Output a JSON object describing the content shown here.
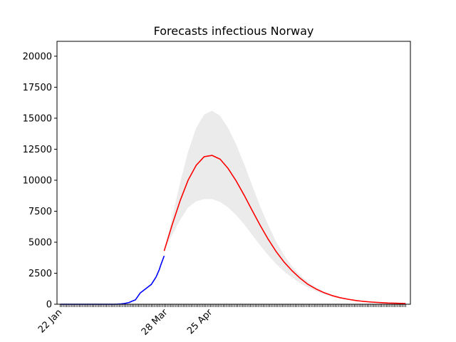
{
  "chart_data": {
    "type": "line",
    "title": "Forecasts infectious Norway",
    "xlabel": "",
    "ylabel": "",
    "x_unit": "day index from 22 Jan",
    "xlim": [
      -2,
      219
    ],
    "ylim": [
      0,
      21200
    ],
    "y_ticks": [
      0,
      2500,
      5000,
      7500,
      10000,
      12500,
      15000,
      17500,
      20000
    ],
    "y_tick_labels": [
      "0",
      "2500",
      "5000",
      "7500",
      "10000",
      "12500",
      "15000",
      "17500",
      "20000"
    ],
    "x_labeled_ticks": [
      {
        "x": 0,
        "label": "22 Jan"
      },
      {
        "x": 66,
        "label": "28 Mar"
      },
      {
        "x": 94,
        "label": "25 Apr"
      }
    ],
    "x_minor_ticks": {
      "from": 0,
      "to": 216,
      "step": 1
    },
    "grid": false,
    "legend": "none",
    "series": [
      {
        "color": "#0000ff",
        "style": "observed",
        "x": [
          0,
          10,
          20,
          30,
          35,
          38,
          40,
          43,
          45,
          47,
          50,
          53,
          55,
          57,
          60,
          62,
          63,
          65
        ],
        "y": [
          0,
          0,
          0,
          0,
          0,
          30,
          60,
          140,
          250,
          350,
          900,
          1200,
          1400,
          1600,
          2200,
          2800,
          3200,
          3900
        ]
      },
      {
        "color": "#ff0000",
        "style": "forecast",
        "x": [
          65,
          70,
          75,
          80,
          85,
          90,
          95,
          100,
          105,
          110,
          115,
          120,
          125,
          130,
          135,
          140,
          145,
          150,
          155,
          160,
          165,
          170,
          175,
          180,
          185,
          190,
          195,
          200,
          205,
          210,
          216
        ],
        "y": [
          4300,
          6400,
          8350,
          10000,
          11200,
          11900,
          12000,
          11700,
          10950,
          9950,
          8800,
          7580,
          6380,
          5250,
          4250,
          3400,
          2700,
          2100,
          1600,
          1230,
          930,
          700,
          530,
          400,
          300,
          225,
          170,
          130,
          100,
          80,
          60
        ]
      }
    ],
    "band": {
      "color": "#ebebeb",
      "x": [
        65,
        70,
        75,
        80,
        85,
        90,
        95,
        100,
        105,
        110,
        115,
        120,
        125,
        130,
        135,
        140,
        145,
        150,
        155,
        160,
        165,
        170,
        175,
        180,
        185,
        190,
        195,
        200,
        205,
        210,
        216
      ],
      "upper": [
        4300,
        7000,
        9800,
        12300,
        14200,
        15300,
        15600,
        15200,
        14200,
        12900,
        11300,
        9600,
        7900,
        6400,
        5050,
        3950,
        3050,
        2350,
        1800,
        1350,
        1000,
        760,
        570,
        430,
        320,
        240,
        180,
        135,
        105,
        85,
        65
      ],
      "lower": [
        4300,
        5600,
        6800,
        7800,
        8300,
        8480,
        8480,
        8250,
        7800,
        7200,
        6450,
        5600,
        4750,
        3950,
        3250,
        2650,
        2150,
        1700,
        1350,
        1050,
        800,
        610,
        465,
        355,
        270,
        205,
        155,
        120,
        95,
        75,
        55
      ]
    }
  }
}
